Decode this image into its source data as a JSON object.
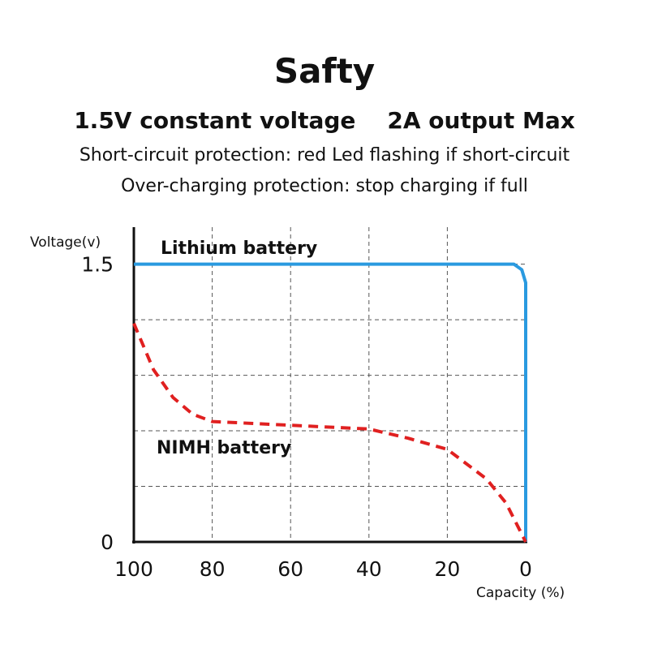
{
  "chart_data": {
    "type": "line",
    "title": "Safty",
    "subtitle": "1.5V constant voltage    2A output Max",
    "notes": [
      "Short-circuit protection: red Led flashing if short-circuit",
      "Over-charging protection: stop charging if full"
    ],
    "y_label": "Voltage(v)",
    "x_label": "Capacity (%)",
    "xlim": [
      100,
      0
    ],
    "ylim": [
      0,
      1.7
    ],
    "xticks": [
      100,
      80,
      60,
      40,
      20,
      0
    ],
    "yticks": [
      0,
      1.5
    ],
    "ygrid": [
      0.3,
      0.6,
      0.9,
      1.2,
      1.5
    ],
    "xgrid": [
      80,
      60,
      40,
      20
    ],
    "grid": true,
    "series": [
      {
        "name": "Lithium battery",
        "color": "#2a9ae0",
        "dashed": false,
        "x": [
          100,
          3,
          1,
          0,
          0
        ],
        "values": [
          1.5,
          1.5,
          1.47,
          1.4,
          0
        ]
      },
      {
        "name": "NIMH battery",
        "color": "#e02020",
        "dashed": true,
        "x": [
          100,
          95,
          90,
          85,
          80,
          60,
          40,
          30,
          20,
          10,
          5,
          0
        ],
        "values": [
          1.18,
          0.93,
          0.78,
          0.69,
          0.65,
          0.63,
          0.61,
          0.56,
          0.5,
          0.34,
          0.21,
          0
        ]
      }
    ]
  }
}
